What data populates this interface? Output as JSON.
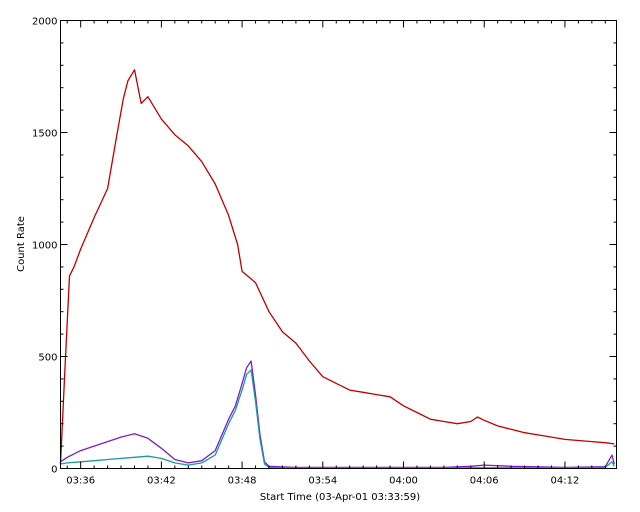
{
  "chart_data": {
    "type": "line",
    "xlabel": "Start Time (03-Apr-01 03:33:59)",
    "ylabel": "Count Rate",
    "x_unit": "time (UT)",
    "xlim": [
      "03:34:30",
      "04:15:50"
    ],
    "ylim": [
      0,
      2000
    ],
    "xticks": [
      "03:36",
      "03:42",
      "03:48",
      "03:54",
      "04:00",
      "04:06",
      "04:12"
    ],
    "yticks": [
      0,
      500,
      1000,
      1500,
      2000
    ],
    "grid": false,
    "series": [
      {
        "color": "#c00000",
        "x": [
          "03:34:30",
          "03:34:50",
          "03:35:10",
          "03:35:30",
          "03:36:00",
          "03:37:00",
          "03:38:00",
          "03:38:40",
          "03:39:10",
          "03:39:30",
          "03:40:00",
          "03:40:30",
          "03:41:00",
          "03:42:00",
          "03:43:00",
          "03:44:00",
          "03:45:00",
          "03:46:00",
          "03:47:00",
          "03:47:40",
          "03:48:00",
          "03:49:00",
          "03:50:00",
          "03:51:00",
          "03:52:00",
          "03:53:00",
          "03:54:00",
          "03:55:00",
          "03:56:00",
          "03:57:00",
          "03:58:00",
          "03:59:00",
          "04:00:00",
          "04:01:00",
          "04:02:00",
          "04:03:00",
          "04:04:00",
          "04:05:00",
          "04:05:30",
          "04:06:00",
          "04:07:00",
          "04:08:00",
          "04:09:00",
          "04:10:00",
          "04:11:00",
          "04:12:00",
          "04:13:00",
          "04:14:00",
          "04:15:00",
          "04:15:40"
        ],
        "values": [
          20,
          450,
          860,
          900,
          980,
          1120,
          1250,
          1480,
          1650,
          1730,
          1780,
          1630,
          1660,
          1560,
          1490,
          1440,
          1370,
          1270,
          1130,
          1000,
          880,
          830,
          700,
          610,
          560,
          480,
          410,
          380,
          350,
          340,
          330,
          320,
          280,
          250,
          220,
          210,
          200,
          210,
          230,
          215,
          190,
          175,
          160,
          150,
          140,
          130,
          125,
          120,
          115,
          110
        ]
      },
      {
        "color": "#7a1fc8",
        "x": [
          "03:34:30",
          "03:35:00",
          "03:36:00",
          "03:37:00",
          "03:38:00",
          "03:39:00",
          "03:40:00",
          "03:41:00",
          "03:42:00",
          "03:43:00",
          "03:44:00",
          "03:45:00",
          "03:46:00",
          "03:47:00",
          "03:47:30",
          "03:48:00",
          "03:48:20",
          "03:48:40",
          "03:49:00",
          "03:49:20",
          "03:49:40",
          "03:50:00",
          "03:52:00",
          "03:56:00",
          "04:00:00",
          "04:03:00",
          "04:05:00",
          "04:06:00",
          "04:08:00",
          "04:12:00",
          "04:15:00",
          "04:15:30",
          "04:15:40"
        ],
        "values": [
          30,
          50,
          80,
          100,
          120,
          140,
          155,
          135,
          90,
          40,
          25,
          35,
          80,
          220,
          280,
          380,
          450,
          480,
          330,
          150,
          30,
          10,
          5,
          5,
          5,
          5,
          10,
          15,
          10,
          5,
          8,
          60,
          20
        ]
      },
      {
        "color": "#1a9aa0",
        "x": [
          "03:34:30",
          "03:35:00",
          "03:36:00",
          "03:37:00",
          "03:38:00",
          "03:39:00",
          "03:40:00",
          "03:41:00",
          "03:42:00",
          "03:43:00",
          "03:44:00",
          "03:45:00",
          "03:46:00",
          "03:47:00",
          "03:47:30",
          "03:48:00",
          "03:48:20",
          "03:48:40",
          "03:49:00",
          "03:49:20",
          "03:49:40",
          "03:50:00",
          "03:52:00",
          "03:56:00",
          "04:00:00",
          "04:05:00",
          "04:10:00",
          "04:15:00",
          "04:15:30",
          "04:15:40"
        ],
        "values": [
          20,
          25,
          30,
          35,
          40,
          45,
          50,
          55,
          45,
          25,
          15,
          25,
          60,
          200,
          260,
          350,
          420,
          440,
          300,
          130,
          20,
          5,
          3,
          3,
          3,
          3,
          3,
          5,
          30,
          10
        ]
      }
    ]
  }
}
